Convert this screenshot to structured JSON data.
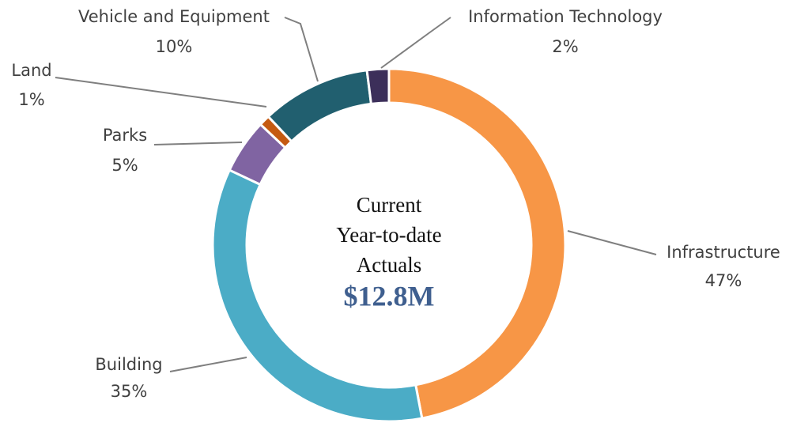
{
  "chart_data": {
    "type": "donut",
    "categories": [
      "Infrastructure",
      "Building",
      "Parks",
      "Land",
      "Vehicle and Equipment",
      "Information Technology"
    ],
    "values": [
      47,
      35,
      5,
      1,
      10,
      2
    ],
    "value_labels": [
      "47%",
      "35%",
      "5%",
      "1%",
      "10%",
      "2%"
    ],
    "colors": [
      "#f79646",
      "#4bacc6",
      "#8064a2",
      "#c55a11",
      "#215f6f",
      "#3c2f5a"
    ],
    "center_text": [
      "Current",
      "Year-to-date",
      "Actuals"
    ],
    "center_value": "$12.8M"
  }
}
